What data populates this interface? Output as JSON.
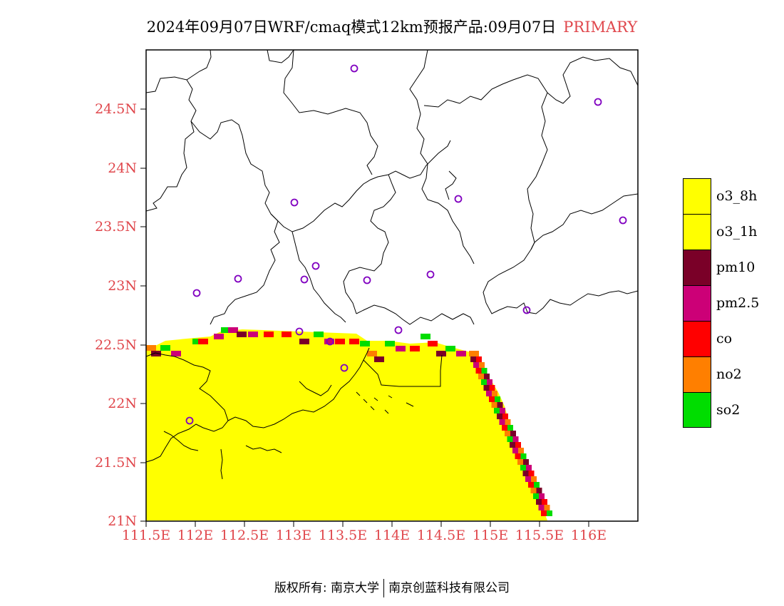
{
  "title": {
    "main": "2024年09月07日WRF/cmaq模式12km预报产品:09月07日",
    "tag": "PRIMARY"
  },
  "axes": {
    "lat_ticks": [
      "24.5N",
      "24N",
      "23.5N",
      "23N",
      "22.5N",
      "22N",
      "21.5N",
      "21N"
    ],
    "lon_ticks": [
      "111.5E",
      "112E",
      "112.5E",
      "113E",
      "113.5E",
      "114E",
      "114.5E",
      "115E",
      "115.5E",
      "116E"
    ]
  },
  "legend": [
    {
      "label": "o3_8h",
      "color": "#ffff00"
    },
    {
      "label": "o3_1h",
      "color": "#ffff00"
    },
    {
      "label": "pm10",
      "color": "#7a0028"
    },
    {
      "label": "pm2.5",
      "color": "#cc0077"
    },
    {
      "label": "co",
      "color": "#ff0000"
    },
    {
      "label": "no2",
      "color": "#ff7f00"
    },
    {
      "label": "so2",
      "color": "#00dd00"
    }
  ],
  "footer": {
    "left": "版权所有: 南京大学",
    "right": "南京创蓝科技有限公司"
  },
  "colors": {
    "axis_label": "#e0474c",
    "station_marker": "#8000c0",
    "primary_fill": "#ffff00"
  }
}
